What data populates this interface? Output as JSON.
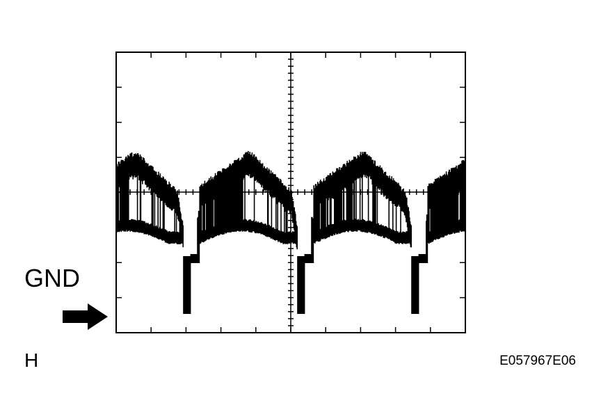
{
  "labels": {
    "ground": "GND",
    "range": "H",
    "figure_id": "E057967E06"
  }
}
